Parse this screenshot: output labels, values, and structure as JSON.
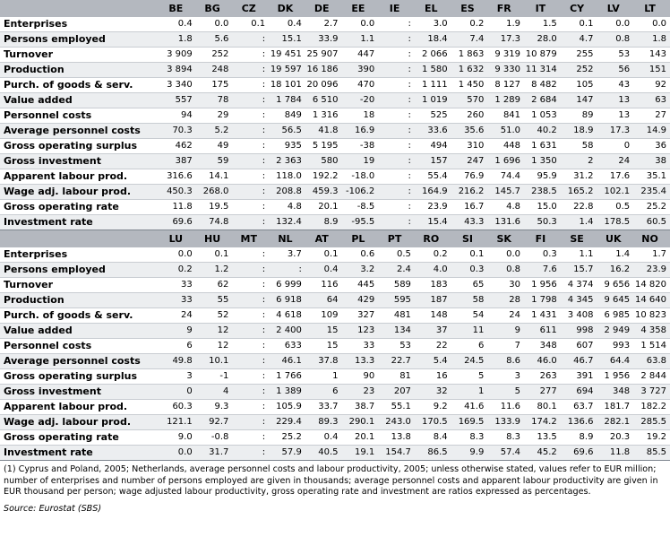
{
  "table1": {
    "countries": [
      "BE",
      "BG",
      "CZ",
      "DK",
      "DE",
      "EE",
      "IE",
      "EL",
      "ES",
      "FR",
      "IT",
      "CY",
      "LV",
      "LT"
    ],
    "rows": [
      {
        "label": "Enterprises",
        "values": [
          "0.4",
          "0.0",
          "0.1",
          "0.4",
          "2.7",
          "0.0",
          ":",
          "3.0",
          "0.2",
          "1.9",
          "1.5",
          "0.1",
          "0.0",
          "0.0"
        ]
      },
      {
        "label": "Persons employed",
        "values": [
          "1.8",
          "5.6",
          ":",
          "15.1",
          "33.9",
          "1.1",
          ":",
          "18.4",
          "7.4",
          "17.3",
          "28.0",
          "4.7",
          "0.8",
          "1.8"
        ]
      },
      {
        "label": "Turnover",
        "values": [
          "3 909",
          "252",
          ":",
          "19 451",
          "25 907",
          "447",
          ":",
          "2 066",
          "1 863",
          "9 319",
          "10 879",
          "255",
          "53",
          "143"
        ]
      },
      {
        "label": "Production",
        "values": [
          "3 894",
          "248",
          ":",
          "19 597",
          "16 186",
          "390",
          ":",
          "1 580",
          "1 632",
          "9 330",
          "11 314",
          "252",
          "56",
          "151"
        ]
      },
      {
        "label": "Purch. of goods & serv.",
        "values": [
          "3 340",
          "175",
          ":",
          "18 101",
          "20 096",
          "470",
          ":",
          "1 111",
          "1 450",
          "8 127",
          "8 482",
          "105",
          "43",
          "92"
        ]
      },
      {
        "label": "Value added",
        "values": [
          "557",
          "78",
          ":",
          "1 784",
          "6 510",
          "-20",
          ":",
          "1 019",
          "570",
          "1 289",
          "2 684",
          "147",
          "13",
          "63"
        ]
      },
      {
        "label": "Personnel costs",
        "values": [
          "94",
          "29",
          ":",
          "849",
          "1 316",
          "18",
          ":",
          "525",
          "260",
          "841",
          "1 053",
          "89",
          "13",
          "27"
        ]
      },
      {
        "label": "Average personnel costs",
        "values": [
          "70.3",
          "5.2",
          ":",
          "56.5",
          "41.8",
          "16.9",
          ":",
          "33.6",
          "35.6",
          "51.0",
          "40.2",
          "18.9",
          "17.3",
          "14.9"
        ]
      },
      {
        "label": "Gross operating surplus",
        "values": [
          "462",
          "49",
          ":",
          "935",
          "5 195",
          "-38",
          ":",
          "494",
          "310",
          "448",
          "1 631",
          "58",
          "0",
          "36"
        ]
      },
      {
        "label": "Gross investment",
        "values": [
          "387",
          "59",
          ":",
          "2 363",
          "580",
          "19",
          ":",
          "157",
          "247",
          "1 696",
          "1 350",
          "2",
          "24",
          "38"
        ]
      },
      {
        "label": "Apparent labour prod.",
        "values": [
          "316.6",
          "14.1",
          ":",
          "118.0",
          "192.2",
          "-18.0",
          ":",
          "55.4",
          "76.9",
          "74.4",
          "95.9",
          "31.2",
          "17.6",
          "35.1"
        ]
      },
      {
        "label": "Wage adj. labour prod.",
        "values": [
          "450.3",
          "268.0",
          ":",
          "208.8",
          "459.3",
          "-106.2",
          ":",
          "164.9",
          "216.2",
          "145.7",
          "238.5",
          "165.2",
          "102.1",
          "235.4"
        ]
      },
      {
        "label": "Gross operating rate",
        "values": [
          "11.8",
          "19.5",
          ":",
          "4.8",
          "20.1",
          "-8.5",
          ":",
          "23.9",
          "16.7",
          "4.8",
          "15.0",
          "22.8",
          "0.5",
          "25.2"
        ]
      },
      {
        "label": "Investment rate",
        "values": [
          "69.6",
          "74.8",
          ":",
          "132.4",
          "8.9",
          "-95.5",
          ":",
          "15.4",
          "43.3",
          "131.6",
          "50.3",
          "1.4",
          "178.5",
          "60.5"
        ]
      }
    ]
  },
  "table2": {
    "countries": [
      "LU",
      "HU",
      "MT",
      "NL",
      "AT",
      "PL",
      "PT",
      "RO",
      "SI",
      "SK",
      "FI",
      "SE",
      "UK",
      "NO"
    ],
    "rows": [
      {
        "label": "Enterprises",
        "values": [
          "0.0",
          "0.1",
          ":",
          "3.7",
          "0.1",
          "0.6",
          "0.5",
          "0.2",
          "0.1",
          "0.0",
          "0.3",
          "1.1",
          "1.4",
          "1.7"
        ]
      },
      {
        "label": "Persons employed",
        "values": [
          "0.2",
          "1.2",
          ":",
          ":",
          "0.4",
          "3.2",
          "2.4",
          "4.0",
          "0.3",
          "0.8",
          "7.6",
          "15.7",
          "16.2",
          "23.9"
        ]
      },
      {
        "label": "Turnover",
        "values": [
          "33",
          "62",
          ":",
          "6 999",
          "116",
          "445",
          "589",
          "183",
          "65",
          "30",
          "1 956",
          "4 374",
          "9 656",
          "14 820"
        ]
      },
      {
        "label": "Production",
        "values": [
          "33",
          "55",
          ":",
          "6 918",
          "64",
          "429",
          "595",
          "187",
          "58",
          "28",
          "1 798",
          "4 345",
          "9 645",
          "14 640"
        ]
      },
      {
        "label": "Purch. of goods & serv.",
        "values": [
          "24",
          "52",
          ":",
          "4 618",
          "109",
          "327",
          "481",
          "148",
          "54",
          "24",
          "1 431",
          "3 408",
          "6 985",
          "10 823"
        ]
      },
      {
        "label": "Value added",
        "values": [
          "9",
          "12",
          ":",
          "2 400",
          "15",
          "123",
          "134",
          "37",
          "11",
          "9",
          "611",
          "998",
          "2 949",
          "4 358"
        ]
      },
      {
        "label": "Personnel costs",
        "values": [
          "6",
          "12",
          ":",
          "633",
          "15",
          "33",
          "53",
          "22",
          "6",
          "7",
          "348",
          "607",
          "993",
          "1 514"
        ]
      },
      {
        "label": "Average personnel costs",
        "values": [
          "49.8",
          "10.1",
          ":",
          "46.1",
          "37.8",
          "13.3",
          "22.7",
          "5.4",
          "24.5",
          "8.6",
          "46.0",
          "46.7",
          "64.4",
          "63.8"
        ]
      },
      {
        "label": "Gross operating surplus",
        "values": [
          "3",
          "-1",
          ":",
          "1 766",
          "1",
          "90",
          "81",
          "16",
          "5",
          "3",
          "263",
          "391",
          "1 956",
          "2 844"
        ]
      },
      {
        "label": "Gross investment",
        "values": [
          "0",
          "4",
          ":",
          "1 389",
          "6",
          "23",
          "207",
          "32",
          "1",
          "5",
          "277",
          "694",
          "348",
          "3 727"
        ]
      },
      {
        "label": "Apparent labour prod.",
        "values": [
          "60.3",
          "9.3",
          ":",
          "105.9",
          "33.7",
          "38.7",
          "55.1",
          "9.2",
          "41.6",
          "11.6",
          "80.1",
          "63.7",
          "181.7",
          "182.2"
        ]
      },
      {
        "label": "Wage adj. labour prod.",
        "values": [
          "121.1",
          "92.7",
          ":",
          "229.4",
          "89.3",
          "290.1",
          "243.0",
          "170.5",
          "169.5",
          "133.9",
          "174.2",
          "136.6",
          "282.1",
          "285.5"
        ]
      },
      {
        "label": "Gross operating rate",
        "values": [
          "9.0",
          "-0.8",
          ":",
          "25.2",
          "0.4",
          "20.1",
          "13.8",
          "8.4",
          "8.3",
          "8.3",
          "13.5",
          "8.9",
          "20.3",
          "19.2"
        ]
      },
      {
        "label": "Investment rate",
        "values": [
          "0.0",
          "31.7",
          ":",
          "57.9",
          "40.5",
          "19.1",
          "154.7",
          "86.5",
          "9.9",
          "57.4",
          "45.2",
          "69.6",
          "11.8",
          "85.5"
        ]
      }
    ]
  },
  "footnote": "(1) Cyprus and Poland, 2005; Netherlands, average personnel costs and labour productivity, 2005; unless otherwise stated, values refer to EUR million; number of enterprises and number of persons employed are given in thousands; average personnel costs and apparent labour productivity are given in EUR thousand per person; wage adjusted labour productivity, gross operating rate and investment are ratios expressed as percentages.",
  "source": "Source: Eurostat (SBS)"
}
